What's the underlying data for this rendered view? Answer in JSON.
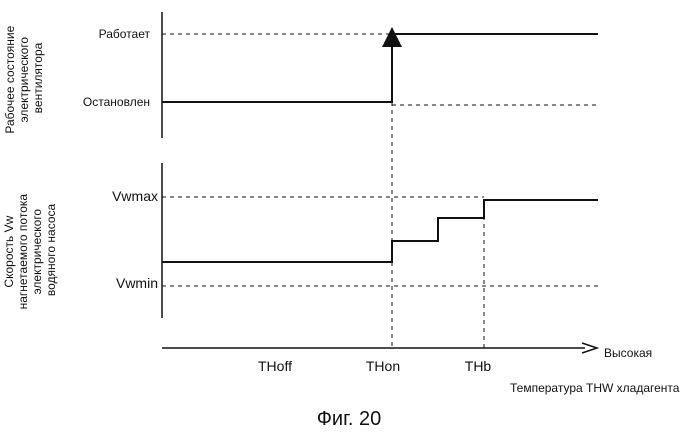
{
  "top_panel": {
    "y_axis_title_lines": [
      "Рабочее состояние",
      "электрического",
      "вентилятора"
    ],
    "state_on": "Работает",
    "state_off": "Остановлен"
  },
  "bottom_panel": {
    "y_axis_title_lines": [
      "Скорость Vw",
      "нагнетаемого потока",
      "электрического",
      "водяного насоса"
    ],
    "vmax": "Vwmax",
    "vmin": "Vwmin"
  },
  "x_axis": {
    "ticks": [
      "THoff",
      "THon",
      "THb"
    ],
    "end_label": "Высокая",
    "title": "Температура THW хладагента"
  },
  "caption": "Фиг. 20"
}
